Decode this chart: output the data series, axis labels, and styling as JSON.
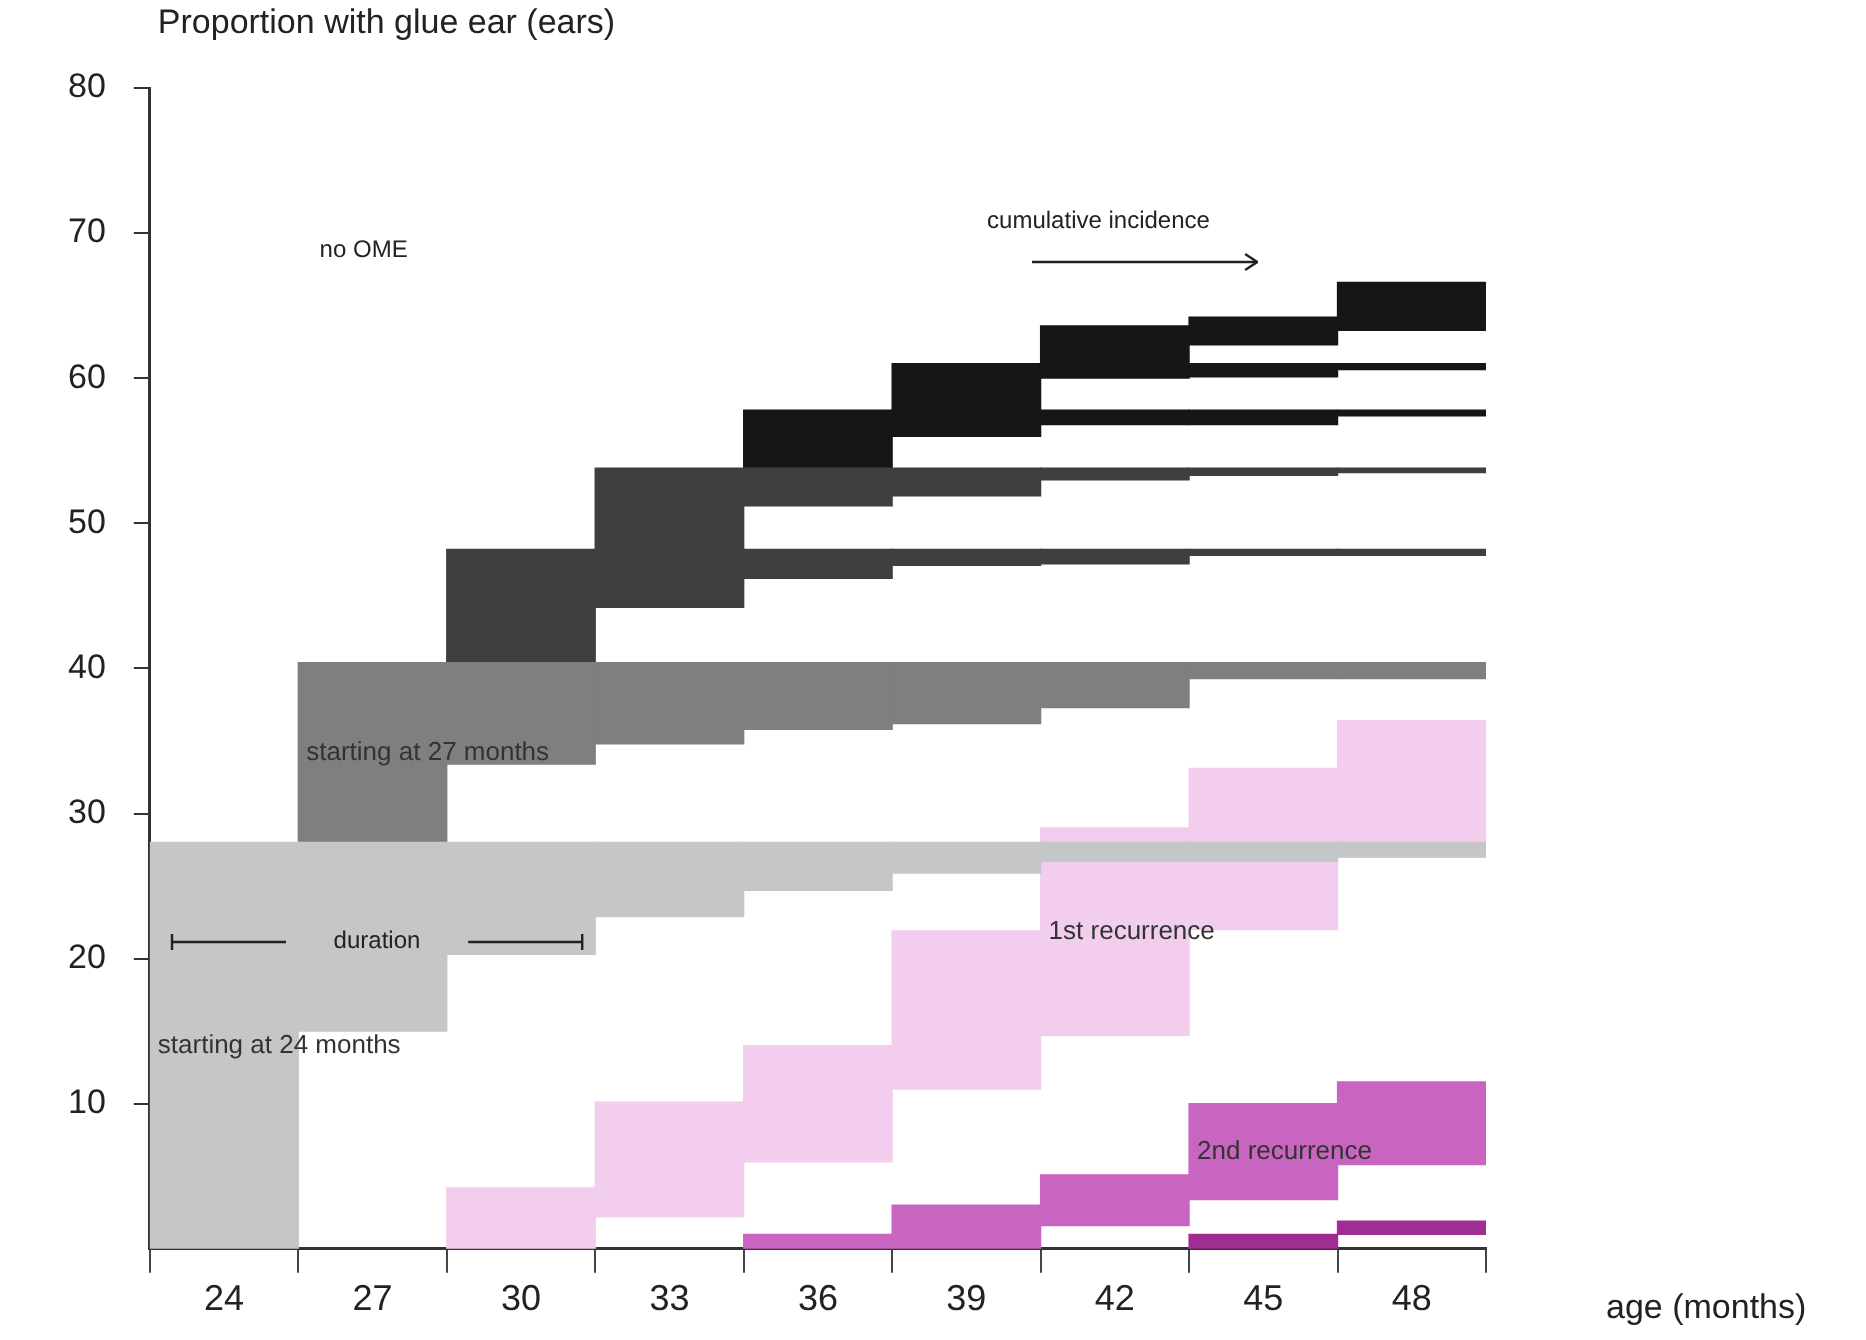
{
  "chart_data": {
    "type": "bar",
    "ylabel": "Proportion with glue ear (ears)",
    "xlabel": "age (months)",
    "categories": [
      "24",
      "27",
      "30",
      "33",
      "36",
      "39",
      "42",
      "45",
      "48"
    ],
    "ylim": [
      0,
      80
    ],
    "yticks": [
      10,
      20,
      30,
      40,
      50,
      60,
      70,
      80
    ],
    "grid": false,
    "legend": false,
    "annotations": [
      "no OME",
      "cumulative incidence",
      "duration"
    ],
    "series": [
      {
        "name": "starting at 24 months",
        "color": "#c4c6c8",
        "base": [
          0,
          15,
          20.3,
          22.9,
          24.7,
          25.9,
          26.7,
          26.7,
          27
        ],
        "values": [
          28,
          13,
          7.7,
          5.1,
          3.3,
          2.1,
          1.3,
          1.3,
          1
        ]
      },
      {
        "name": "starting at 27 months",
        "color": "#7f7f7f",
        "base": [
          null,
          28,
          33.4,
          34.8,
          35.8,
          36.2,
          37.3,
          39.3,
          39.3
        ],
        "values": [
          null,
          12.4,
          7,
          5.6,
          4.6,
          4.2,
          3.1,
          1.1,
          1.1
        ]
      },
      {
        "color": "#3f3f3f",
        "base": [
          null,
          null,
          40.4,
          44.2,
          46.2,
          47.1,
          47.2,
          47.8,
          47.8
        ],
        "values": [
          null,
          null,
          7.8,
          4,
          2,
          1.1,
          1,
          0.4,
          0.4
        ]
      },
      {
        "color": "#3f3f3f",
        "base": [
          null,
          null,
          null,
          48.2,
          51.2,
          51.9,
          53,
          53.3,
          53.5
        ],
        "values": [
          null,
          null,
          null,
          5.6,
          2.6,
          1.9,
          0.8,
          0.5,
          0.3
        ]
      },
      {
        "color": "#161616",
        "base": [
          null,
          null,
          null,
          null,
          53.8,
          56,
          56.8,
          56.8,
          57.4
        ],
        "values": [
          null,
          null,
          null,
          null,
          4,
          1.8,
          1,
          1,
          0.4
        ]
      },
      {
        "color": "#161616",
        "base": [
          null,
          null,
          null,
          null,
          null,
          57.8,
          60,
          60.1,
          60.6
        ],
        "values": [
          null,
          null,
          null,
          null,
          null,
          3.2,
          1,
          0.9,
          0.4
        ]
      },
      {
        "color": "#161616",
        "base": [
          null,
          null,
          null,
          null,
          null,
          null,
          61,
          62.3,
          63.3
        ],
        "values": [
          null,
          null,
          null,
          null,
          null,
          null,
          2.6,
          1.3,
          0.3
        ]
      },
      {
        "color": "#161616",
        "base": [
          null,
          null,
          null,
          null,
          null,
          null,
          null,
          63.6,
          63.6
        ],
        "values": [
          null,
          null,
          null,
          null,
          null,
          null,
          null,
          0.6,
          0.6
        ]
      },
      {
        "color": "#161616",
        "base": [
          null,
          null,
          null,
          null,
          null,
          null,
          null,
          null,
          64.2
        ],
        "values": [
          null,
          null,
          null,
          null,
          null,
          null,
          null,
          null,
          2.4
        ]
      },
      {
        "name": "1st recurrence",
        "color": "#f2cdee",
        "base": [
          null,
          null,
          0,
          2.2,
          6,
          11,
          14.7,
          22,
          27
        ],
        "values": [
          null,
          null,
          4.2,
          7.9,
          8,
          10.9,
          14.3,
          11.1,
          9.4
        ]
      },
      {
        "name": "2nd recurrence",
        "color": "#c865c0",
        "base": [
          null,
          null,
          null,
          null,
          0,
          0,
          1.6,
          3.4,
          5.8
        ],
        "values": [
          null,
          null,
          null,
          null,
          1,
          3,
          3.5,
          6.6,
          5.7
        ]
      },
      {
        "color": "#a02d91",
        "base": [
          null,
          null,
          null,
          null,
          null,
          null,
          null,
          0,
          1
        ],
        "values": [
          null,
          null,
          null,
          null,
          null,
          null,
          null,
          1,
          0.9
        ]
      }
    ]
  }
}
